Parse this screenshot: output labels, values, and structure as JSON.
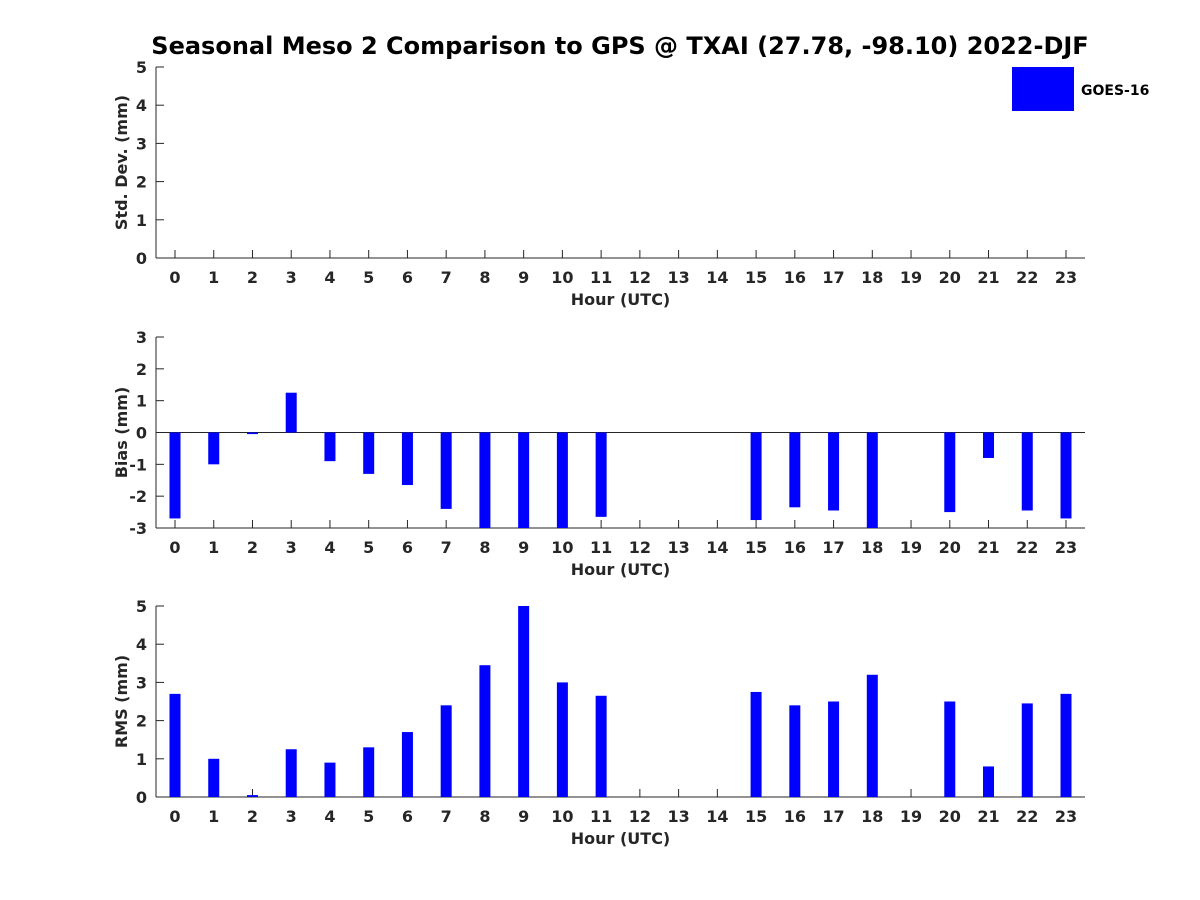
{
  "chart_data": [
    {
      "type": "bar",
      "title": "Seasonal Meso 2 Comparison to GPS @ TXAI (27.78, -98.10) 2022-DJF",
      "xlabel": "Hour (UTC)",
      "ylabel": "Std. Dev. (mm)",
      "ylim": [
        0,
        5
      ],
      "yticks": [
        "0",
        "1",
        "2",
        "3",
        "4",
        "5"
      ],
      "categories": [
        "0",
        "1",
        "2",
        "3",
        "4",
        "5",
        "6",
        "7",
        "8",
        "9",
        "10",
        "11",
        "12",
        "13",
        "14",
        "15",
        "16",
        "17",
        "18",
        "19",
        "20",
        "21",
        "22",
        "23"
      ],
      "series": [
        {
          "name": "GOES-16",
          "color": "#0000ff",
          "values": [
            null,
            null,
            null,
            null,
            null,
            null,
            null,
            null,
            null,
            null,
            null,
            null,
            null,
            null,
            null,
            null,
            null,
            null,
            null,
            null,
            null,
            null,
            null,
            null
          ]
        }
      ],
      "legend": {
        "entries": [
          "GOES-16"
        ],
        "position": "top-right"
      }
    },
    {
      "type": "bar",
      "xlabel": "Hour (UTC)",
      "ylabel": "Bias (mm)",
      "ylim": [
        -3,
        3
      ],
      "yticks": [
        "-3",
        "-2",
        "-1",
        "0",
        "1",
        "2",
        "3"
      ],
      "categories": [
        "0",
        "1",
        "2",
        "3",
        "4",
        "5",
        "6",
        "7",
        "8",
        "9",
        "10",
        "11",
        "12",
        "13",
        "14",
        "15",
        "16",
        "17",
        "18",
        "19",
        "20",
        "21",
        "22",
        "23"
      ],
      "series": [
        {
          "name": "GOES-16",
          "color": "#0000ff",
          "values": [
            -2.7,
            -1.0,
            -0.05,
            1.25,
            -0.9,
            -1.3,
            -1.65,
            -2.4,
            -3.0,
            -3.0,
            -3.0,
            -2.65,
            null,
            null,
            null,
            -2.75,
            -2.35,
            -2.45,
            -3.0,
            null,
            -2.5,
            -0.8,
            -2.45,
            -2.7
          ]
        }
      ]
    },
    {
      "type": "bar",
      "xlabel": "Hour (UTC)",
      "ylabel": "RMS (mm)",
      "ylim": [
        0,
        5
      ],
      "yticks": [
        "0",
        "1",
        "2",
        "3",
        "4",
        "5"
      ],
      "categories": [
        "0",
        "1",
        "2",
        "3",
        "4",
        "5",
        "6",
        "7",
        "8",
        "9",
        "10",
        "11",
        "12",
        "13",
        "14",
        "15",
        "16",
        "17",
        "18",
        "19",
        "20",
        "21",
        "22",
        "23"
      ],
      "series": [
        {
          "name": "GOES-16",
          "color": "#0000ff",
          "values": [
            2.7,
            1.0,
            0.05,
            1.25,
            0.9,
            1.3,
            1.7,
            2.4,
            3.45,
            5.0,
            3.0,
            2.65,
            null,
            null,
            null,
            2.75,
            2.4,
            2.5,
            3.2,
            null,
            2.5,
            0.8,
            2.45,
            2.7
          ]
        }
      ]
    }
  ]
}
